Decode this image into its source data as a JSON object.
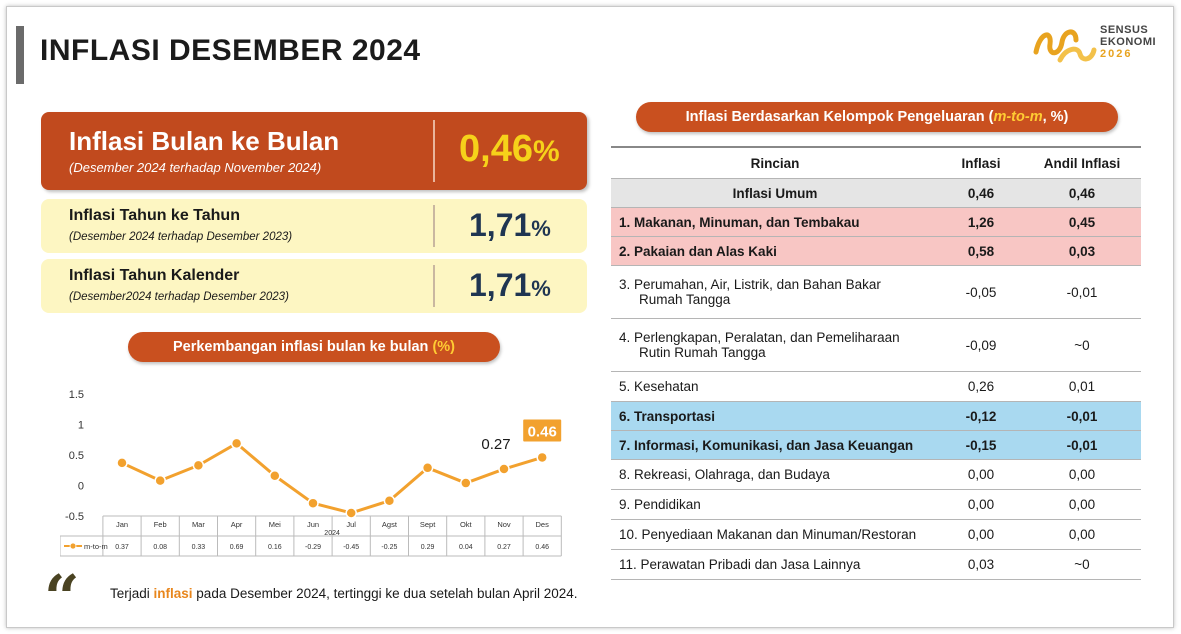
{
  "page": {
    "title": "INFLASI DESEMBER 2024"
  },
  "logo": {
    "line1": "SENSUS",
    "line2": "EKONOMI",
    "line3": "2026"
  },
  "mom": {
    "label": "Inflasi Bulan ke Bulan",
    "sub": "(Desember 2024 terhadap November 2024)",
    "value": "0,46",
    "unit": "%"
  },
  "yoy": {
    "label": "Inflasi Tahun ke Tahun",
    "sub": "(Desember 2024 terhadap Desember 2023)",
    "value": "1,71",
    "unit": "%"
  },
  "ytd": {
    "label": "Inflasi Tahun Kalender",
    "sub": "(Desember2024 terhadap Desember 2023)",
    "value": "1,71",
    "unit": "%"
  },
  "chart_pill": {
    "text": "Perkembangan inflasi bulan ke bulan ",
    "hl": "(%)"
  },
  "table_pill": {
    "text": "Inflasi Berdasarkan Kelompok Pengeluaran (",
    "hl": "m-to-m",
    "tail": ", %)"
  },
  "chart_data": {
    "type": "line",
    "categories": [
      "Jan",
      "Feb",
      "Mar",
      "Apr",
      "Mei",
      "Jun",
      "Jul",
      "Agst",
      "Sept",
      "Okt",
      "Nov",
      "Des"
    ],
    "x_group_label": "2024",
    "series": [
      {
        "name": "m-to-m",
        "values": [
          0.37,
          0.08,
          0.33,
          0.69,
          0.16,
          -0.29,
          -0.45,
          -0.25,
          0.29,
          0.04,
          0.27,
          0.46
        ],
        "table_labels": [
          "0.37",
          "0.08",
          "0.33",
          "0.69",
          "0.16",
          "-0.29",
          "-0.45",
          "-0.25",
          "0.29",
          "0.04",
          "0.27",
          "0.46"
        ]
      }
    ],
    "yticks": [
      "1.5",
      "1",
      "0.5",
      "0",
      "-0.5"
    ],
    "ylim": [
      -0.5,
      1.5
    ],
    "annotations": [
      {
        "index": 10,
        "text": "0.27",
        "style": "plain"
      },
      {
        "index": 11,
        "text": "0.46",
        "style": "box"
      }
    ],
    "line_color": "#f2a12e",
    "grid": false,
    "legend": "data-table-bottom"
  },
  "table": {
    "headers": [
      "Rincian",
      "Inflasi",
      "Andil Inflasi"
    ],
    "rows": [
      {
        "style": "grey",
        "label": "Inflasi Umum",
        "inflasi": "0,46",
        "andil": "0,46"
      },
      {
        "style": "pink",
        "label": "1.  Makanan, Minuman, dan Tembakau",
        "inflasi": "1,26",
        "andil": "0,45"
      },
      {
        "style": "pink",
        "label": "2.  Pakaian dan Alas Kaki",
        "inflasi": "0,58",
        "andil": "0,03"
      },
      {
        "style": "tall",
        "label": "3.  Perumahan, Air, Listrik,  dan Bahan Bakar",
        "label2": "Rumah Tangga",
        "inflasi": "-0,05",
        "andil": "-0,01"
      },
      {
        "style": "tall",
        "label": "4.  Perlengkapan, Peralatan, dan Pemeliharaan",
        "label2": "Rutin Rumah Tangga",
        "inflasi": "-0,09",
        "andil": "~0"
      },
      {
        "style": "plain",
        "label": "5.  Kesehatan",
        "inflasi": "0,26",
        "andil": "0,01"
      },
      {
        "style": "blue",
        "label": "6.  Transportasi",
        "inflasi": "-0,12",
        "andil": "-0,01"
      },
      {
        "style": "blue",
        "label": "7.  Informasi, Komunikasi, dan Jasa Keuangan",
        "inflasi": "-0,15",
        "andil": "-0,01"
      },
      {
        "style": "plain",
        "label": "8.  Rekreasi, Olahraga, dan Budaya",
        "inflasi": "0,00",
        "andil": "0,00"
      },
      {
        "style": "plain",
        "label": "9.  Pendidikan",
        "inflasi": "0,00",
        "andil": "0,00"
      },
      {
        "style": "plain",
        "label": "10. Penyediaan Makanan dan Minuman/Restoran",
        "inflasi": "0,00",
        "andil": "0,00"
      },
      {
        "style": "plain",
        "label": "11. Perawatan Pribadi dan Jasa Lainnya",
        "inflasi": "0,03",
        "andil": "~0"
      }
    ]
  },
  "quote": {
    "mark": "“",
    "pre": "Terjadi ",
    "hl": "inflasi",
    "post": " pada Desember 2024, tertinggi ke dua setelah bulan April 2024."
  },
  "colors": {
    "accent": "#c14a1e",
    "value_yellow": "#f6d21a",
    "panel_yellow": "#fdf6c2",
    "navy": "#1f3552",
    "pink_row": "#f8c6c4",
    "blue_row": "#a9d9f0",
    "grey_row": "#e5e5e5"
  }
}
